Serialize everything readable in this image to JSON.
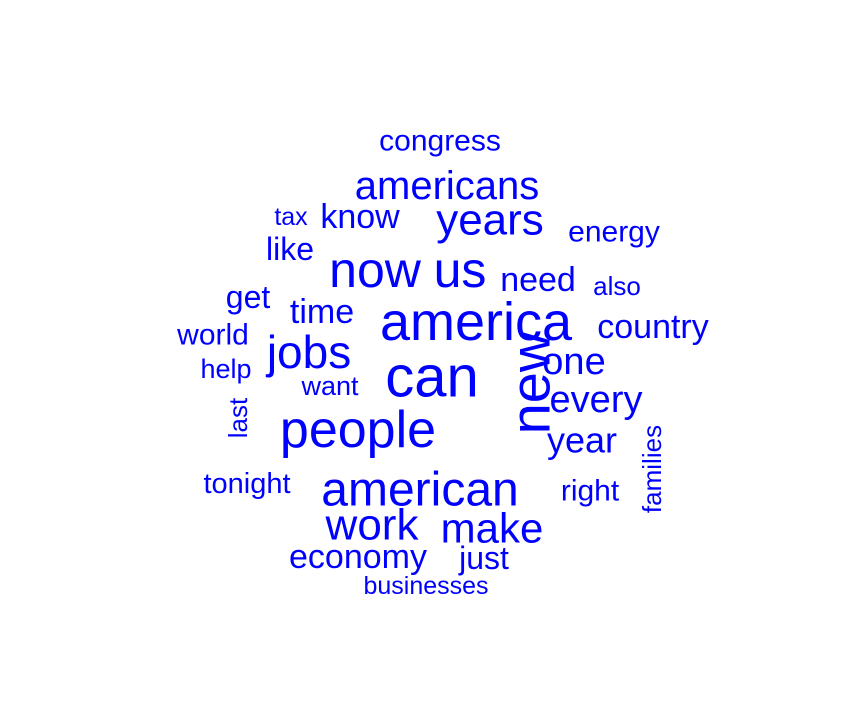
{
  "chart_data": {
    "type": "wordcloud",
    "color": "#0000ff",
    "words": [
      {
        "text": "can",
        "weight": 58
      },
      {
        "text": "new",
        "weight": 56
      },
      {
        "text": "america",
        "weight": 54
      },
      {
        "text": "people",
        "weight": 52
      },
      {
        "text": "now",
        "weight": 50
      },
      {
        "text": "us",
        "weight": 50
      },
      {
        "text": "american",
        "weight": 48
      },
      {
        "text": "jobs",
        "weight": 46
      },
      {
        "text": "years",
        "weight": 44
      },
      {
        "text": "work",
        "weight": 44
      },
      {
        "text": "make",
        "weight": 42
      },
      {
        "text": "americans",
        "weight": 40
      },
      {
        "text": "every",
        "weight": 38
      },
      {
        "text": "one",
        "weight": 38
      },
      {
        "text": "year",
        "weight": 36
      },
      {
        "text": "need",
        "weight": 34
      },
      {
        "text": "economy",
        "weight": 34
      },
      {
        "text": "time",
        "weight": 34
      },
      {
        "text": "know",
        "weight": 34
      },
      {
        "text": "country",
        "weight": 34
      },
      {
        "text": "just",
        "weight": 32
      },
      {
        "text": "get",
        "weight": 32
      },
      {
        "text": "like",
        "weight": 32
      },
      {
        "text": "right",
        "weight": 30
      },
      {
        "text": "energy",
        "weight": 30
      },
      {
        "text": "congress",
        "weight": 30
      },
      {
        "text": "world",
        "weight": 30
      },
      {
        "text": "tonight",
        "weight": 29
      },
      {
        "text": "want",
        "weight": 27
      },
      {
        "text": "help",
        "weight": 27
      },
      {
        "text": "last",
        "weight": 26
      },
      {
        "text": "families",
        "weight": 26
      },
      {
        "text": "also",
        "weight": 26
      },
      {
        "text": "businesses",
        "weight": 25
      },
      {
        "text": "tax",
        "weight": 25
      }
    ]
  }
}
